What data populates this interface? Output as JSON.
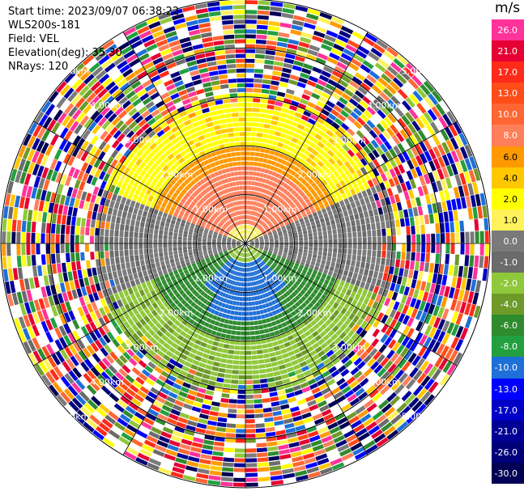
{
  "header": {
    "start_time": "Start time: 2023/09/07 06:38:22",
    "station": "WLS200s-181",
    "field": "Field: VEL",
    "elevation": "Elevation(deg): 35.30",
    "nrays": "NRays: 120"
  },
  "colorbar": {
    "unit": "m/s",
    "bins": [
      {
        "label": "26.0",
        "color": "#ff3399"
      },
      {
        "label": "21.0",
        "color": "#e60033"
      },
      {
        "label": "17.0",
        "color": "#ff2a1a"
      },
      {
        "label": "13.0",
        "color": "#ff4d1a"
      },
      {
        "label": "10.0",
        "color": "#ff6633"
      },
      {
        "label": "8.0",
        "color": "#ff7f5a"
      },
      {
        "label": "6.0",
        "color": "#ff9900"
      },
      {
        "label": "4.0",
        "color": "#ffc800"
      },
      {
        "label": "2.0",
        "color": "#ffff00"
      },
      {
        "label": "1.0",
        "color": "#fff25a"
      },
      {
        "label": "0.0",
        "color": "#7a7a7a"
      },
      {
        "label": "-1.0",
        "color": "#6b6b6b"
      },
      {
        "label": "-2.0",
        "color": "#8fc83a"
      },
      {
        "label": "-4.0",
        "color": "#6e9a2a"
      },
      {
        "label": "-6.0",
        "color": "#2e8b2e"
      },
      {
        "label": "-8.0",
        "color": "#22a040"
      },
      {
        "label": "-10.0",
        "color": "#1e6fd8"
      },
      {
        "label": "-13.0",
        "color": "#0000ff"
      },
      {
        "label": "-17.0",
        "color": "#0000c8"
      },
      {
        "label": "-21.0",
        "color": "#000096"
      },
      {
        "label": "-26.0",
        "color": "#00007a"
      },
      {
        "label": "-30.0",
        "color": "#000055"
      }
    ]
  },
  "chart_data": {
    "type": "heatmap",
    "projection": "polar PPI",
    "field": "VEL",
    "units": "m/s",
    "range_rings_km": [
      1.0,
      2.0,
      3.0,
      4.0,
      5.0
    ],
    "ring_labels": [
      "1.00km",
      "2.00km",
      "3.00km",
      "4.00km",
      "5.00km"
    ],
    "max_range_km": 5.0,
    "nrays": 120,
    "valid_data_range_km": 3.0,
    "sectors": [
      {
        "azimuth_from": 270,
        "azimuth_to": 90,
        "inner_color": "#ff7f5a",
        "inner_value": 8.0,
        "middle_color": "#ff9900",
        "outer_color": "#ffff00"
      },
      {
        "azimuth_from": 60,
        "azimuth_to": 110,
        "color": "#7a7a7a",
        "value": 0.0
      },
      {
        "azimuth_from": 250,
        "azimuth_to": 290,
        "color": "#7a7a7a",
        "value": 0.0
      },
      {
        "azimuth_from": 110,
        "azimuth_to": 250,
        "inner_color": "#1e6fd8",
        "inner_value": -10.0,
        "middle_color": "#2e8b2e",
        "outer_color": "#8fc83a"
      }
    ]
  }
}
